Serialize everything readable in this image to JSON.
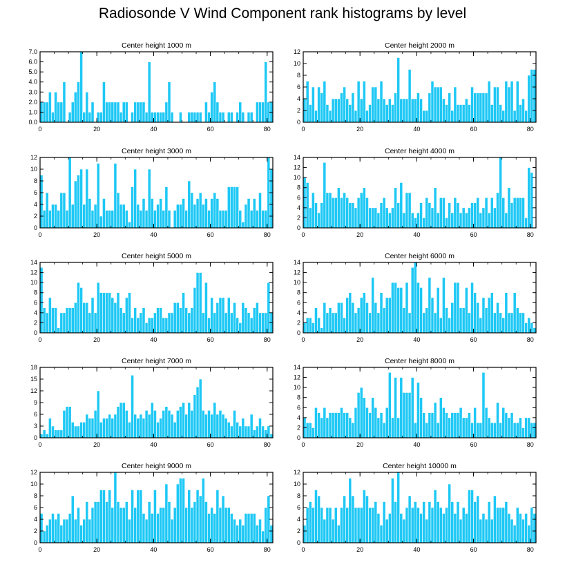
{
  "title": "Radiosonde V Wind Component rank histograms by level",
  "colors": {
    "bar": "#1EC8F5",
    "bar_edge": "#ffffff",
    "axis": "#000000"
  },
  "chart_data": [
    {
      "type": "bar",
      "title": "Center height 1000 m",
      "xlim": [
        0,
        82
      ],
      "ylim": [
        0,
        7
      ],
      "xticks": [
        0,
        20,
        40,
        60,
        80
      ],
      "xtick_labels": [
        "0",
        "20",
        "40",
        "60",
        "80"
      ],
      "yticks": [
        0,
        1,
        2,
        3,
        4,
        5,
        6,
        7
      ],
      "ytick_labels": [
        "0.0",
        "1.0",
        "2.0",
        "3.0",
        "4.0",
        "5.0",
        "6.0",
        "7.0"
      ],
      "values": [
        2,
        2,
        2,
        3,
        1,
        3,
        2,
        2,
        4,
        0,
        1,
        2,
        3,
        4,
        7,
        1,
        3,
        1,
        2,
        0,
        1,
        1,
        4,
        2,
        2,
        2,
        2,
        2,
        1,
        2,
        2,
        0,
        1,
        2,
        2,
        2,
        2,
        1,
        6,
        1,
        1,
        1,
        1,
        1,
        2,
        4,
        1,
        0,
        0,
        1,
        0,
        0,
        1,
        1,
        1,
        1,
        1,
        0,
        2,
        1,
        3,
        4,
        2,
        1,
        1,
        0,
        1,
        1,
        0,
        1,
        2,
        1,
        0,
        1,
        1,
        0,
        2,
        2,
        2,
        6,
        2,
        2
      ]
    },
    {
      "type": "bar",
      "title": "Center height 2000 m",
      "xlim": [
        0,
        82
      ],
      "ylim": [
        0,
        12
      ],
      "xticks": [
        0,
        20,
        40,
        60,
        80
      ],
      "xtick_labels": [
        "0",
        "20",
        "40",
        "60",
        "80"
      ],
      "yticks": [
        0,
        2,
        4,
        6,
        8,
        10,
        12
      ],
      "ytick_labels": [
        "0",
        "2",
        "4",
        "6",
        "8",
        "10",
        "12"
      ],
      "values": [
        4,
        7,
        3,
        6,
        2,
        6,
        5,
        7,
        3,
        2,
        4,
        4,
        4,
        5,
        6,
        4,
        3,
        5,
        2,
        7,
        4,
        7,
        2,
        3,
        6,
        6,
        4,
        7,
        4,
        3,
        4,
        3,
        5,
        11,
        4,
        4,
        4,
        9,
        4,
        4,
        5,
        4,
        2,
        2,
        5,
        7,
        6,
        6,
        6,
        4,
        3,
        5,
        2,
        6,
        3,
        3,
        3,
        4,
        3,
        6,
        5,
        5,
        5,
        5,
        5,
        7,
        3,
        6,
        6,
        3,
        2,
        7,
        6,
        7,
        2,
        7,
        3,
        4,
        2,
        8,
        9,
        9
      ]
    },
    {
      "type": "bar",
      "title": "Center height 3000 m",
      "xlim": [
        0,
        82
      ],
      "ylim": [
        0,
        12
      ],
      "xticks": [
        0,
        20,
        40,
        60,
        80
      ],
      "xtick_labels": [
        "0",
        "20",
        "40",
        "60",
        "80"
      ],
      "yticks": [
        0,
        2,
        4,
        6,
        8,
        10,
        12
      ],
      "ytick_labels": [
        "0",
        "2",
        "4",
        "6",
        "8",
        "10",
        "12"
      ],
      "values": [
        9,
        3,
        6,
        3,
        4,
        4,
        3,
        6,
        6,
        3,
        12,
        4,
        8,
        9,
        10,
        4,
        10,
        5,
        3,
        4,
        11,
        2,
        5,
        3,
        3,
        3,
        11,
        6,
        4,
        4,
        3,
        1,
        7,
        10,
        4,
        3,
        5,
        3,
        10,
        5,
        3,
        4,
        5,
        3,
        7,
        3,
        0,
        3,
        4,
        4,
        5,
        3,
        8,
        6,
        4,
        5,
        6,
        4,
        5,
        3,
        5,
        6,
        5,
        3,
        3,
        3,
        7,
        7,
        7,
        7,
        3,
        1,
        4,
        5,
        3,
        5,
        3,
        6,
        3,
        3,
        12,
        10
      ]
    },
    {
      "type": "bar",
      "title": "Center height 4000 m",
      "xlim": [
        0,
        82
      ],
      "ylim": [
        0,
        14
      ],
      "xticks": [
        0,
        20,
        40,
        60,
        80
      ],
      "xtick_labels": [
        "0",
        "20",
        "40",
        "60",
        "80"
      ],
      "yticks": [
        0,
        2,
        4,
        6,
        8,
        10,
        12,
        14
      ],
      "ytick_labels": [
        "0",
        "2",
        "4",
        "6",
        "8",
        "10",
        "12",
        "14"
      ],
      "values": [
        10,
        9,
        4,
        7,
        5,
        3,
        5,
        13,
        7,
        7,
        6,
        6,
        8,
        6,
        7,
        6,
        5,
        5,
        4,
        6,
        7,
        8,
        6,
        4,
        4,
        4,
        3,
        5,
        6,
        4,
        3,
        4,
        8,
        5,
        9,
        3,
        7,
        7,
        3,
        2,
        3,
        5,
        2,
        6,
        5,
        4,
        8,
        3,
        6,
        6,
        2,
        5,
        3,
        6,
        5,
        3,
        4,
        3,
        4,
        5,
        5,
        6,
        3,
        4,
        6,
        3,
        6,
        4,
        7,
        14,
        6,
        3,
        8,
        5,
        6,
        6,
        6,
        6,
        2,
        12,
        11,
        0
      ]
    },
    {
      "type": "bar",
      "title": "Center height 5000 m",
      "xlim": [
        0,
        82
      ],
      "ylim": [
        0,
        14
      ],
      "xticks": [
        0,
        20,
        40,
        60,
        80
      ],
      "xtick_labels": [
        "0",
        "20",
        "40",
        "60",
        "80"
      ],
      "yticks": [
        0,
        2,
        4,
        6,
        8,
        10,
        12,
        14
      ],
      "ytick_labels": [
        "0",
        "2",
        "4",
        "6",
        "8",
        "10",
        "12",
        "14"
      ],
      "values": [
        13,
        5,
        4,
        7,
        5,
        5,
        1,
        4,
        4,
        5,
        5,
        5,
        6,
        10,
        9,
        6,
        6,
        4,
        7,
        4,
        10,
        8,
        8,
        8,
        8,
        7,
        6,
        8,
        5,
        4,
        7,
        8,
        3,
        5,
        3,
        4,
        5,
        2,
        3,
        3,
        4,
        5,
        5,
        3,
        3,
        4,
        4,
        6,
        6,
        5,
        8,
        5,
        4,
        5,
        9,
        12,
        12,
        4,
        10,
        3,
        7,
        4,
        6,
        7,
        7,
        4,
        7,
        4,
        6,
        3,
        2,
        6,
        5,
        4,
        3,
        5,
        6,
        4,
        4,
        4,
        10,
        4
      ]
    },
    {
      "type": "bar",
      "title": "Center height 6000 m",
      "xlim": [
        0,
        82
      ],
      "ylim": [
        0,
        14
      ],
      "xticks": [
        0,
        20,
        40,
        60,
        80
      ],
      "xtick_labels": [
        "0",
        "20",
        "40",
        "60",
        "80"
      ],
      "yticks": [
        0,
        2,
        4,
        6,
        8,
        10,
        12,
        14
      ],
      "ytick_labels": [
        "0",
        "2",
        "4",
        "6",
        "8",
        "10",
        "12",
        "14"
      ],
      "values": [
        2,
        3,
        3,
        2,
        5,
        3,
        1,
        6,
        4,
        5,
        4,
        4,
        6,
        6,
        3,
        7,
        8,
        6,
        4,
        5,
        7,
        8,
        6,
        4,
        11,
        6,
        4,
        8,
        5,
        7,
        7,
        10,
        10,
        9,
        9,
        5,
        10,
        4,
        13,
        14,
        10,
        9,
        4,
        5,
        11,
        7,
        4,
        9,
        3,
        11,
        5,
        3,
        6,
        10,
        10,
        5,
        5,
        9,
        4,
        10,
        8,
        6,
        3,
        7,
        5,
        7,
        8,
        4,
        6,
        4,
        3,
        8,
        4,
        4,
        8,
        5,
        4,
        4,
        2,
        3,
        2,
        1
      ]
    },
    {
      "type": "bar",
      "title": "Center height 7000 m",
      "xlim": [
        0,
        82
      ],
      "ylim": [
        0,
        18
      ],
      "xticks": [
        0,
        20,
        40,
        60,
        80
      ],
      "xtick_labels": [
        "0",
        "20",
        "40",
        "60",
        "80"
      ],
      "yticks": [
        0,
        3,
        6,
        9,
        12,
        15,
        18
      ],
      "ytick_labels": [
        "0",
        "3",
        "6",
        "9",
        "12",
        "15",
        "18"
      ],
      "values": [
        1,
        2,
        1,
        5,
        3,
        2,
        2,
        2,
        7,
        8,
        8,
        4,
        3,
        3,
        4,
        4,
        6,
        5,
        5,
        7,
        12,
        4,
        5,
        5,
        6,
        5,
        6,
        8,
        9,
        9,
        7,
        4,
        16,
        6,
        5,
        6,
        5,
        7,
        6,
        9,
        7,
        4,
        5,
        7,
        8,
        7,
        6,
        4,
        7,
        8,
        9,
        6,
        9,
        7,
        11,
        13,
        15,
        7,
        6,
        7,
        6,
        9,
        6,
        7,
        6,
        5,
        4,
        3,
        7,
        4,
        3,
        5,
        3,
        3,
        6,
        2,
        3,
        5,
        3,
        2,
        3,
        1
      ]
    },
    {
      "type": "bar",
      "title": "Center height 8000 m",
      "xlim": [
        0,
        82
      ],
      "ylim": [
        0,
        14
      ],
      "xticks": [
        0,
        20,
        40,
        60,
        80
      ],
      "xtick_labels": [
        "0",
        "20",
        "40",
        "60",
        "80"
      ],
      "yticks": [
        0,
        2,
        4,
        6,
        8,
        10,
        12,
        14
      ],
      "ytick_labels": [
        "0",
        "2",
        "4",
        "6",
        "8",
        "10",
        "12",
        "14"
      ],
      "values": [
        4,
        3,
        3,
        2,
        6,
        5,
        4,
        6,
        4,
        5,
        5,
        5,
        5,
        6,
        5,
        5,
        4,
        3,
        6,
        9,
        10,
        8,
        6,
        5,
        8,
        6,
        4,
        5,
        3,
        6,
        13,
        4,
        12,
        4,
        12,
        9,
        9,
        9,
        12,
        3,
        11,
        8,
        5,
        3,
        5,
        5,
        7,
        3,
        8,
        6,
        5,
        4,
        5,
        5,
        5,
        6,
        4,
        4,
        5,
        3,
        6,
        3,
        3,
        13,
        6,
        4,
        3,
        3,
        7,
        3,
        6,
        5,
        4,
        5,
        3,
        3,
        4,
        2,
        4,
        4,
        3,
        3
      ]
    },
    {
      "type": "bar",
      "title": "Center height 9000 m",
      "xlim": [
        0,
        82
      ],
      "ylim": [
        0,
        12
      ],
      "xticks": [
        0,
        20,
        40,
        60,
        80
      ],
      "xtick_labels": [
        "0",
        "20",
        "40",
        "60",
        "80"
      ],
      "yticks": [
        0,
        2,
        4,
        6,
        8,
        10,
        12
      ],
      "ytick_labels": [
        "0",
        "2",
        "4",
        "6",
        "8",
        "10",
        "12"
      ],
      "values": [
        5,
        2,
        3,
        4,
        5,
        4,
        5,
        3,
        4,
        4,
        5,
        8,
        4,
        6,
        3,
        4,
        7,
        4,
        6,
        7,
        7,
        9,
        9,
        7,
        9,
        6,
        12,
        7,
        6,
        6,
        7,
        4,
        9,
        6,
        9,
        9,
        5,
        4,
        7,
        5,
        9,
        5,
        6,
        6,
        10,
        7,
        4,
        6,
        10,
        11,
        11,
        6,
        9,
        6,
        7,
        9,
        8,
        11,
        7,
        5,
        6,
        5,
        9,
        6,
        8,
        6,
        6,
        5,
        4,
        3,
        4,
        3,
        5,
        5,
        5,
        5,
        3,
        4,
        2,
        6,
        8,
        3
      ]
    },
    {
      "type": "bar",
      "title": "Center height 10000 m",
      "xlim": [
        0,
        82
      ],
      "ylim": [
        0,
        12
      ],
      "xticks": [
        0,
        20,
        40,
        60,
        80
      ],
      "xtick_labels": [
        "0",
        "20",
        "40",
        "60",
        "80"
      ],
      "yticks": [
        0,
        2,
        4,
        6,
        8,
        10,
        12
      ],
      "ytick_labels": [
        "0",
        "2",
        "4",
        "6",
        "8",
        "10",
        "12"
      ],
      "values": [
        3,
        6,
        7,
        6,
        9,
        8,
        6,
        4,
        6,
        6,
        4,
        6,
        3,
        6,
        8,
        6,
        11,
        8,
        6,
        6,
        6,
        9,
        8,
        6,
        6,
        7,
        5,
        3,
        7,
        4,
        5,
        11,
        7,
        12,
        5,
        4,
        6,
        8,
        6,
        7,
        6,
        5,
        7,
        4,
        7,
        6,
        9,
        7,
        6,
        5,
        6,
        10,
        7,
        5,
        7,
        4,
        6,
        5,
        9,
        9,
        7,
        8,
        4,
        5,
        4,
        7,
        4,
        8,
        6,
        6,
        6,
        7,
        5,
        4,
        3,
        6,
        5,
        4,
        5,
        3,
        6,
        5
      ]
    }
  ]
}
